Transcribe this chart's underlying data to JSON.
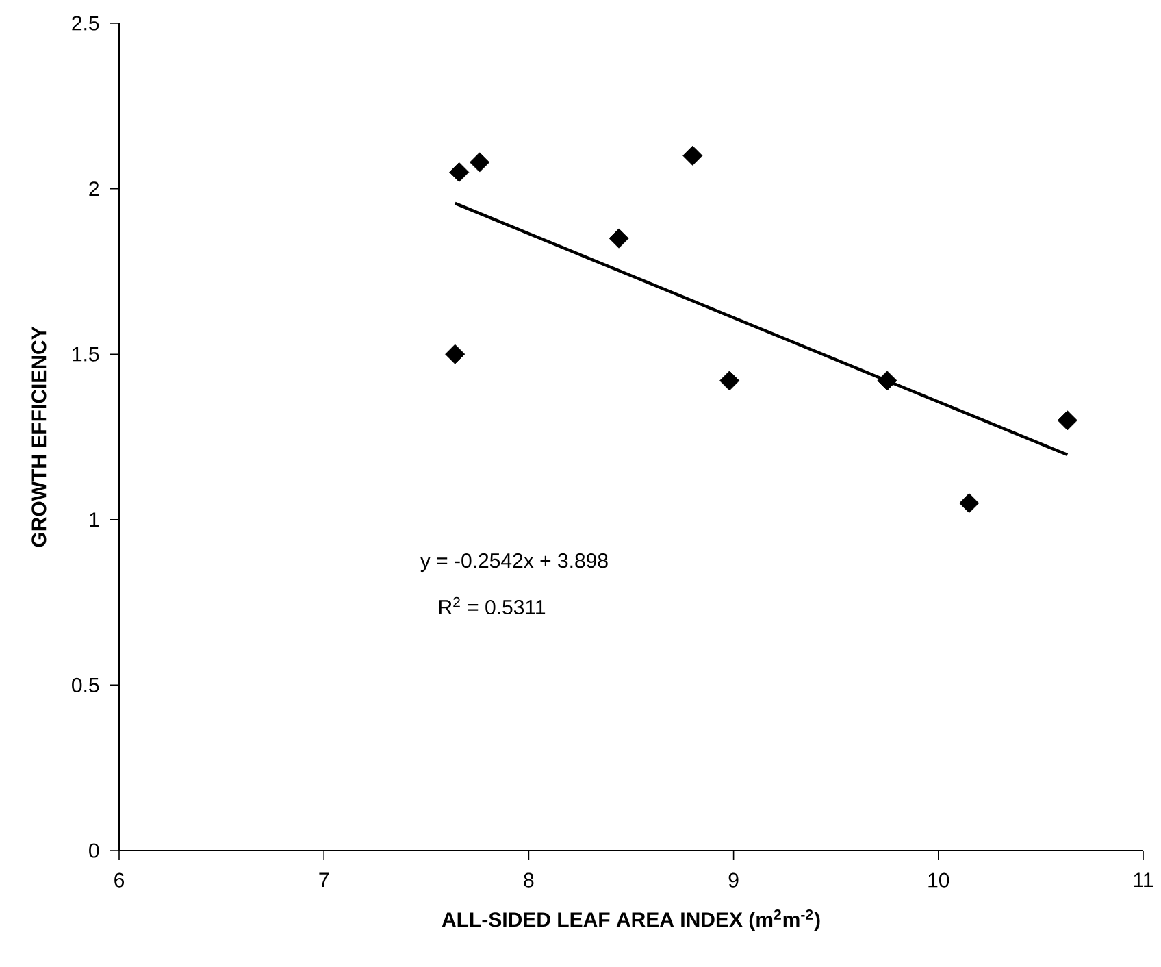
{
  "chart_data": {
    "type": "scatter",
    "xlabel": "ALL-SIDED LEAF AREA INDEX (m$^{2}$m$^{-2}$)",
    "ylabel": "GROWTH EFFICIENCY",
    "annotations": [
      "y = -0.2542x + 3.898",
      "R$^{2}$ = 0.5311"
    ],
    "xlim": [
      6,
      11
    ],
    "xticks": [
      6,
      7,
      8,
      9,
      10,
      11
    ],
    "ylim": [
      0,
      2.5
    ],
    "yticks": [
      0,
      0.5,
      1,
      1.5,
      2,
      2.5
    ],
    "series": [
      {
        "marker": "diamond",
        "color": "#000000",
        "x": [
          7.66,
          7.76,
          7.64,
          8.8,
          8.44,
          8.98,
          9.75,
          10.63,
          10.15
        ],
        "values": [
          2.05,
          2.08,
          1.5,
          2.1,
          1.85,
          1.42,
          1.42,
          1.3,
          1.05
        ]
      },
      {
        "type": "line",
        "color": "#000000",
        "x": [
          7.64,
          10.63
        ],
        "values": [
          1.956,
          1.196
        ]
      }
    ]
  }
}
